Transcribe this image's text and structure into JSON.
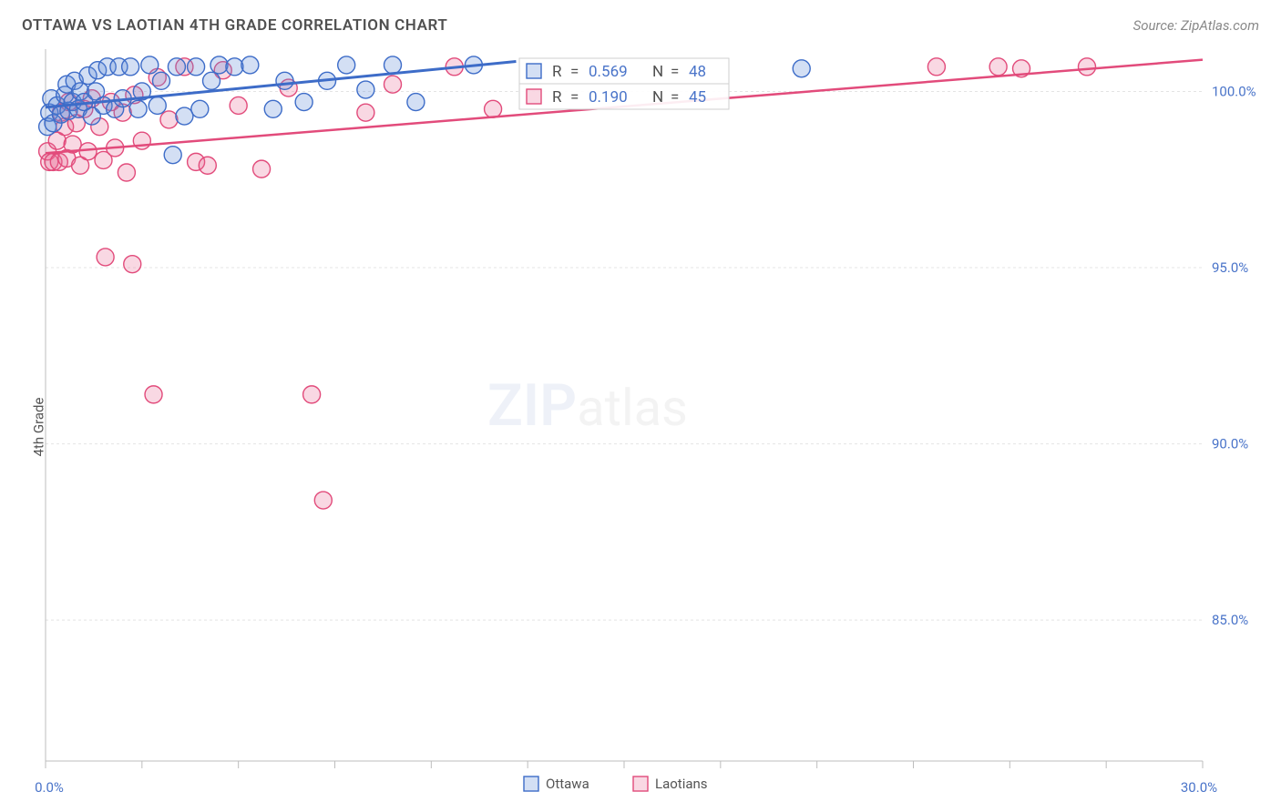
{
  "header": {
    "title": "OTTAWA VS LAOTIAN 4TH GRADE CORRELATION CHART",
    "source": "Source: ZipAtlas.com"
  },
  "watermark": {
    "zip": "ZIP",
    "atlas": "atlas"
  },
  "chart": {
    "type": "scatter",
    "ylabel": "4th Grade",
    "background_color": "#ffffff",
    "grid_color": "#e4e4e4",
    "axis_color": "#bdbdbd",
    "xlim": [
      0.0,
      30.0
    ],
    "ylim": [
      81.0,
      101.2
    ],
    "x_ticks_major": [
      0.0,
      30.0
    ],
    "x_ticks_major_labels": [
      "0.0%",
      "30.0%"
    ],
    "x_ticks_minor": [
      2.5,
      5.0,
      7.5,
      10.0,
      12.5,
      15.0,
      17.5,
      20.0,
      22.5,
      25.0,
      27.5
    ],
    "y_ticks": [
      85.0,
      90.0,
      95.0,
      100.0
    ],
    "y_tick_labels": [
      "85.0%",
      "90.0%",
      "95.0%",
      "100.0%"
    ],
    "marker_radius": 9.5,
    "series": {
      "ottawa": {
        "label": "Ottawa",
        "color_fill": "rgba(98,140,214,0.28)",
        "color_stroke": "#3d6cc8",
        "trend": {
          "x0": 0.0,
          "y0": 99.55,
          "x1": 12.2,
          "y1": 100.85,
          "stroke_width": 3
        },
        "stats": {
          "R": "0.569",
          "N": "48"
        },
        "points": [
          [
            0.05,
            99.0
          ],
          [
            0.1,
            99.4
          ],
          [
            0.15,
            99.8
          ],
          [
            0.2,
            99.1
          ],
          [
            0.3,
            99.6
          ],
          [
            0.4,
            99.35
          ],
          [
            0.5,
            99.9
          ],
          [
            0.55,
            100.2
          ],
          [
            0.6,
            99.45
          ],
          [
            0.7,
            99.7
          ],
          [
            0.75,
            100.3
          ],
          [
            0.85,
            99.5
          ],
          [
            0.9,
            100.0
          ],
          [
            1.0,
            99.7
          ],
          [
            1.1,
            100.45
          ],
          [
            1.2,
            99.3
          ],
          [
            1.3,
            100.0
          ],
          [
            1.35,
            100.6
          ],
          [
            1.5,
            99.6
          ],
          [
            1.6,
            100.7
          ],
          [
            1.8,
            99.5
          ],
          [
            1.9,
            100.7
          ],
          [
            2.0,
            99.8
          ],
          [
            2.2,
            100.7
          ],
          [
            2.4,
            99.5
          ],
          [
            2.5,
            100.0
          ],
          [
            2.7,
            100.75
          ],
          [
            2.9,
            99.6
          ],
          [
            3.0,
            100.3
          ],
          [
            3.3,
            98.2
          ],
          [
            3.4,
            100.7
          ],
          [
            3.6,
            99.3
          ],
          [
            3.9,
            100.7
          ],
          [
            4.0,
            99.5
          ],
          [
            4.3,
            100.3
          ],
          [
            4.5,
            100.75
          ],
          [
            4.9,
            100.7
          ],
          [
            5.3,
            100.75
          ],
          [
            5.9,
            99.5
          ],
          [
            6.2,
            100.3
          ],
          [
            6.7,
            99.7
          ],
          [
            7.3,
            100.3
          ],
          [
            7.8,
            100.75
          ],
          [
            8.3,
            100.05
          ],
          [
            9.0,
            100.75
          ],
          [
            9.6,
            99.7
          ],
          [
            11.1,
            100.75
          ],
          [
            19.6,
            100.65
          ]
        ]
      },
      "laotians": {
        "label": "Laotians",
        "color_fill": "rgba(232,105,148,0.26)",
        "color_stroke": "#e24b7b",
        "trend": {
          "x0": 0.0,
          "y0": 98.25,
          "x1": 30.0,
          "y1": 100.9,
          "stroke_width": 2.5
        },
        "stats": {
          "R": "0.190",
          "N": "45"
        },
        "points": [
          [
            0.05,
            98.3
          ],
          [
            0.1,
            98.0
          ],
          [
            0.2,
            98.0
          ],
          [
            0.3,
            98.6
          ],
          [
            0.35,
            98.0
          ],
          [
            0.4,
            99.4
          ],
          [
            0.5,
            99.0
          ],
          [
            0.55,
            98.1
          ],
          [
            0.6,
            99.7
          ],
          [
            0.7,
            98.5
          ],
          [
            0.8,
            99.1
          ],
          [
            0.9,
            97.9
          ],
          [
            1.0,
            99.5
          ],
          [
            1.1,
            98.3
          ],
          [
            1.2,
            99.8
          ],
          [
            1.4,
            99.0
          ],
          [
            1.5,
            98.05
          ],
          [
            1.55,
            95.3
          ],
          [
            1.7,
            99.7
          ],
          [
            1.8,
            98.4
          ],
          [
            2.0,
            99.4
          ],
          [
            2.1,
            97.7
          ],
          [
            2.25,
            95.1
          ],
          [
            2.3,
            99.9
          ],
          [
            2.5,
            98.6
          ],
          [
            2.8,
            91.4
          ],
          [
            2.9,
            100.4
          ],
          [
            3.2,
            99.2
          ],
          [
            3.6,
            100.7
          ],
          [
            3.9,
            98.0
          ],
          [
            4.2,
            97.9
          ],
          [
            4.6,
            100.6
          ],
          [
            5.0,
            99.6
          ],
          [
            5.6,
            97.8
          ],
          [
            6.3,
            100.1
          ],
          [
            6.9,
            91.4
          ],
          [
            7.2,
            88.4
          ],
          [
            8.3,
            99.4
          ],
          [
            9.0,
            100.2
          ],
          [
            10.6,
            100.7
          ],
          [
            11.6,
            99.5
          ],
          [
            23.1,
            100.7
          ],
          [
            24.7,
            100.7
          ],
          [
            25.3,
            100.65
          ],
          [
            27.0,
            100.7
          ]
        ]
      }
    }
  },
  "legend": {
    "items": [
      {
        "key": "ottawa",
        "label": "Ottawa"
      },
      {
        "key": "laotians",
        "label": "Laotians"
      }
    ]
  }
}
